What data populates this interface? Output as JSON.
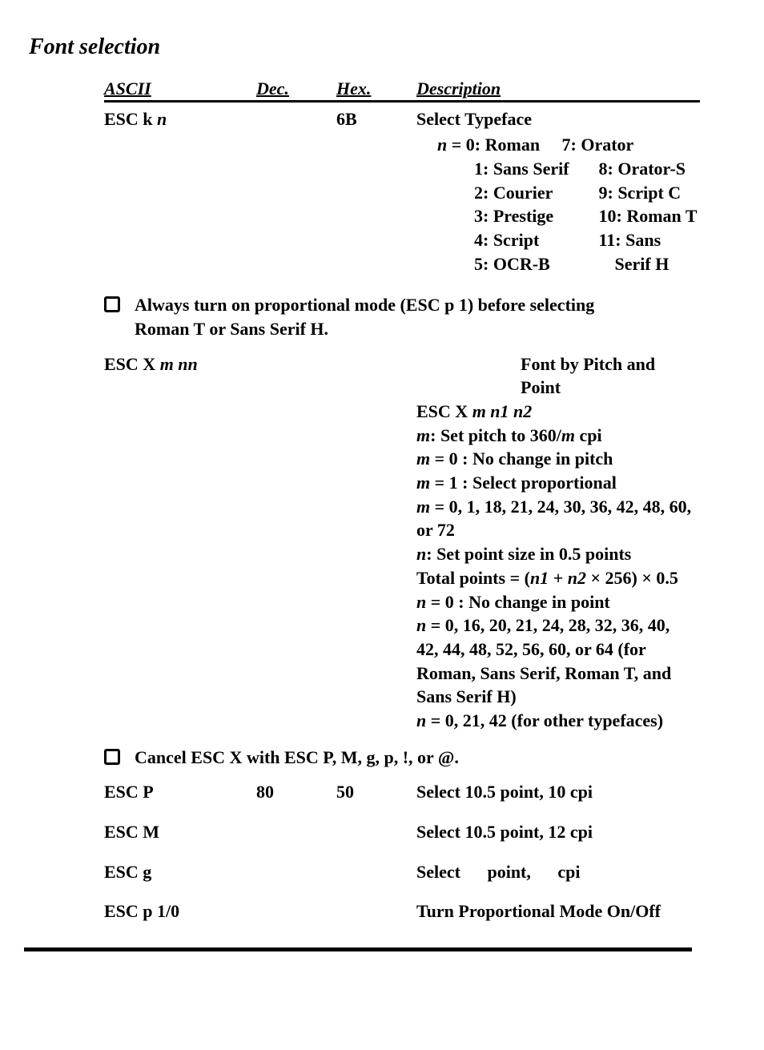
{
  "title": "Font selection",
  "headers": {
    "ascii": "ASCII",
    "dec": "Dec.",
    "hex": "Hex.",
    "desc": "Description"
  },
  "row1": {
    "ascii_plain": "ESC k ",
    "ascii_ital": "n",
    "dec": "",
    "hex": "6B",
    "desc_title": "Select Typeface",
    "typefaces": {
      "prefix_ital": "n",
      "prefix_rest": " = ",
      "col_a": [
        "0: Roman",
        "1: Sans Serif",
        "2: Courier",
        "3: Prestige",
        "4: Script",
        "5: OCR-B"
      ],
      "col_b": [
        "7: Orator",
        "8: Orator-S",
        "9: Script C",
        "10: Roman T",
        "11: Sans",
        "    Serif H"
      ]
    }
  },
  "note1": "Always turn on proportional mode (ESC p 1) before selecting Roman T or Sans Serif H.",
  "row2": {
    "ascii_plain": "ESC X ",
    "ascii_ital": "m nn",
    "desc_title": "Font by Pitch and Point",
    "lines": [
      {
        "pre": "ESC X ",
        "ital": "m n1 n2",
        "post": ""
      },
      {
        "pre": "",
        "ital": "m",
        "post": ": Set pitch to 360/",
        "ital2": "m",
        "post2": " cpi"
      },
      {
        "pre": "",
        "ital": "m",
        "post": " = 0 : No change in pitch"
      },
      {
        "pre": "",
        "ital": "m",
        "post": " = 1 : Select proportional"
      },
      {
        "pre": "",
        "ital": "m",
        "post": " = 0, 1, 18, 21, 24, 30, 36, 42, 48, 60, or 72"
      },
      {
        "pre": "",
        "ital": "n",
        "post": ": Set point size in 0.5 points"
      },
      {
        "pre": "Total points = (",
        "ital": "n1",
        "post": " + ",
        "ital2": "n2",
        "post2": " × 256) × 0.5"
      },
      {
        "pre": "",
        "ital": "n",
        "post": " = 0 : No change in point"
      },
      {
        "pre": "",
        "ital": "n",
        "post": " = 0, 16, 20, 21, 24, 28, 32, 36, 40, 42, 44, 48, 52, 56, 60, or 64 (for Roman, Sans Serif, Roman T, and Sans Serif H)"
      },
      {
        "pre": "",
        "ital": "n",
        "post": " = 0, 21, 42 (for other typefaces)"
      }
    ]
  },
  "note2": "Cancel ESC X with ESC P, M, g, p, !, or @.",
  "row3": {
    "ascii": "ESC P",
    "dec": "80",
    "hex": "50",
    "desc": "Select 10.5 point, 10 cpi"
  },
  "row4": {
    "ascii": "ESC M",
    "dec": "",
    "hex": "",
    "desc": "Select 10.5 point, 12 cpi"
  },
  "row5": {
    "ascii": "ESC g",
    "dec": "",
    "hex": "",
    "desc": "Select     point,    cpi"
  },
  "row6": {
    "ascii": "ESC p 1/0",
    "dec": "",
    "hex": "",
    "desc": "Turn Proportional Mode On/Off"
  }
}
